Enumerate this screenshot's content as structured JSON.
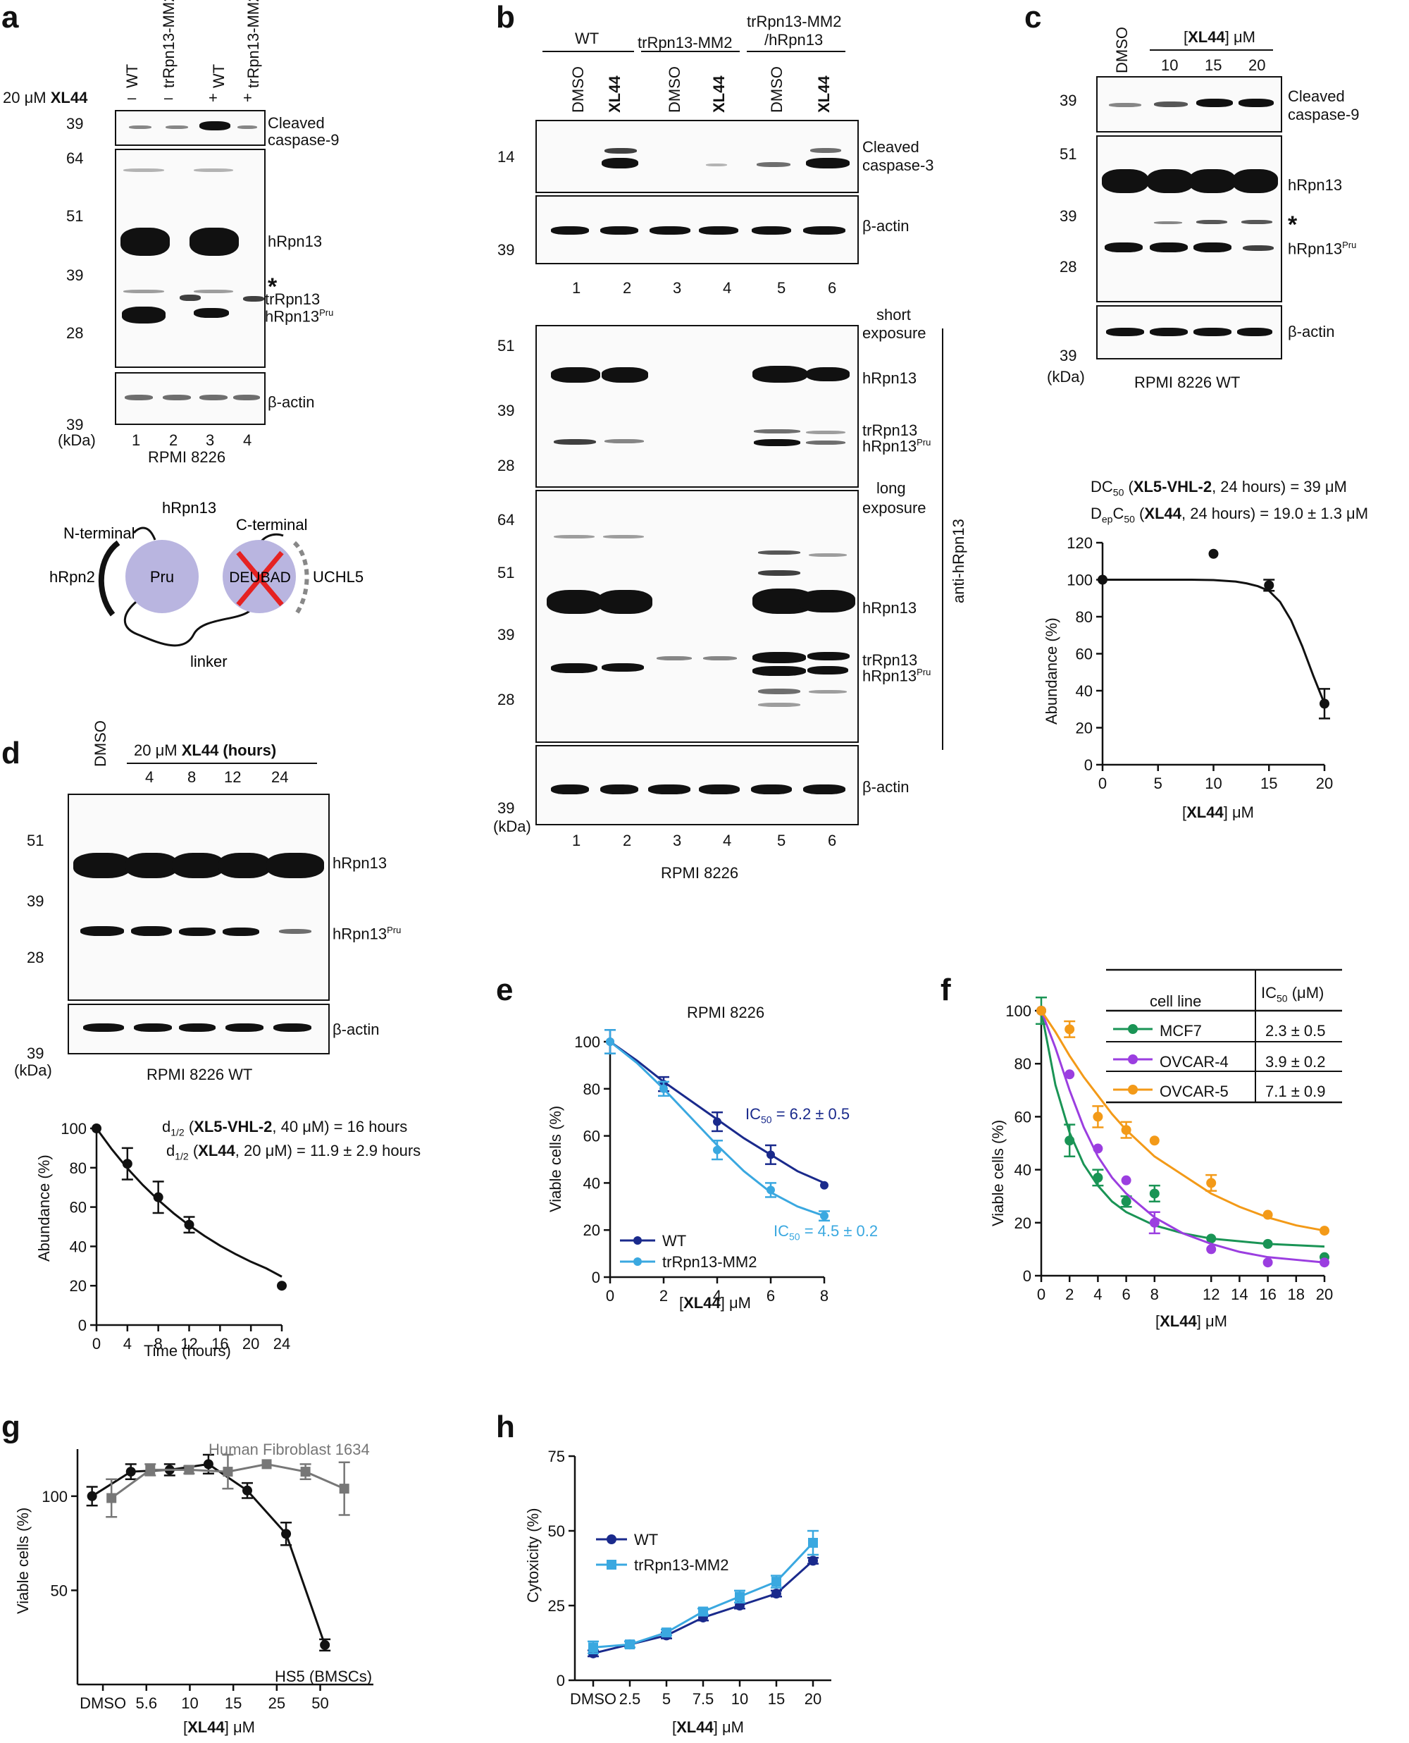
{
  "panels": {
    "a": {
      "label": "a",
      "treatment_prefix": "20 μM",
      "treatment_drug": "XL44",
      "lanes": [
        {
          "name": "WT",
          "sign": "–",
          "num": "1"
        },
        {
          "name": "trRpn13-MM2",
          "sign": "–",
          "num": "2"
        },
        {
          "name": "WT",
          "sign": "+",
          "num": "3"
        },
        {
          "name": "trRpn13-MM2",
          "sign": "+",
          "num": "4"
        }
      ],
      "markers": [
        "39",
        "64",
        "51",
        "39",
        "28",
        "39"
      ],
      "kda": "(kDa)",
      "blot_labels": [
        "Cleaved",
        "caspase-9",
        "hRpn13",
        "*",
        "trRpn13",
        "hRpn13",
        "Pru",
        "β-actin"
      ],
      "cell_line": "RPMI 8226"
    },
    "diagram": {
      "title": "hRpn13",
      "n_terminal": "N-terminal",
      "c_terminal": "C-terminal",
      "hrpn2": "hRpn2",
      "pru": "Pru",
      "deubad": "DEUBAD",
      "uchl5": "UCHL5",
      "linker": "linker",
      "pru_color": "#b9b5e0",
      "cross_color": "#e52222"
    },
    "b": {
      "label": "b",
      "groups": [
        "WT",
        "trRpn13-MM2",
        "trRpn13-MM2",
        "/hRpn13"
      ],
      "lanes": [
        "DMSO",
        "XL44",
        "DMSO",
        "XL44",
        "DMSO",
        "XL44"
      ],
      "lane_nums": [
        "1",
        "2",
        "3",
        "4",
        "5",
        "6"
      ],
      "markers": [
        "14",
        "39",
        "51",
        "39",
        "28",
        "64",
        "51",
        "39",
        "28",
        "39"
      ],
      "kda": "(kDa)",
      "blot_labels": [
        "Cleaved",
        "caspase-3",
        "β-actin",
        "short",
        "exposure",
        "hRpn13",
        "trRpn13",
        "hRpn13",
        "Pru",
        "long",
        "exposure",
        "hRpn13",
        "trRpn13",
        "hRpn13",
        "Pru",
        "β-actin"
      ],
      "antibody": "anti-hRpn13",
      "cell_line": "RPMI 8226"
    },
    "c": {
      "label": "c",
      "lane_dmso": "DMSO",
      "header_pre": "[",
      "header_drug": "XL44",
      "header_post": "] μM",
      "concs": [
        "10",
        "15",
        "20"
      ],
      "markers": [
        "39",
        "51",
        "39",
        "28",
        "39"
      ],
      "kda": "(kDa)",
      "blot_labels": [
        "Cleaved",
        "caspase-9",
        "hRpn13",
        "*",
        "hRpn13",
        "Pru",
        "β-actin"
      ],
      "cell_line": "RPMI 8226 WT"
    },
    "d": {
      "label": "d",
      "lane_dmso": "DMSO",
      "header_pre": "20 μM",
      "header_drug": "XL44 (hours)",
      "times": [
        "4",
        "8",
        "12",
        "24"
      ],
      "markers": [
        "51",
        "39",
        "28",
        "39"
      ],
      "kda": "(kDa)",
      "blot_labels": [
        "hRpn13",
        "hRpn13",
        "Pru",
        "β-actin"
      ],
      "cell_line": "RPMI 8226 WT"
    }
  },
  "chart_data": [
    {
      "id": "c-plot",
      "type": "line",
      "title_line1": [
        "DC",
        "50",
        " (",
        "XL5-VHL-2",
        ", 24 hours) = 39 μM"
      ],
      "title_line2": [
        "D",
        "ep",
        "C",
        "50",
        " (",
        "XL44",
        ", 24 hours) = 19.0 ± 1.3 μM"
      ],
      "xlabel": [
        "[",
        "XL44",
        "] μM"
      ],
      "ylabel": "Abundance (%)",
      "xlim": [
        0,
        20
      ],
      "ylim": [
        0,
        120
      ],
      "xticks": [
        0,
        5,
        10,
        15,
        20
      ],
      "yticks": [
        0,
        20,
        40,
        60,
        80,
        100,
        120
      ],
      "series": [
        {
          "name": "XL44",
          "color": "#111111",
          "x": [
            0,
            10,
            15,
            20
          ],
          "y": [
            100,
            114,
            97,
            33
          ],
          "err": [
            0,
            0,
            3,
            8
          ],
          "fit_x": [
            0,
            2,
            4,
            6,
            8,
            10,
            12,
            13,
            14,
            15,
            16,
            17,
            18,
            19,
            20
          ],
          "fit_y": [
            100,
            100,
            100,
            100,
            100,
            99.8,
            99,
            98,
            96.5,
            94,
            88,
            78,
            64,
            48,
            33
          ]
        }
      ]
    },
    {
      "id": "d-plot",
      "type": "line",
      "title_line1": [
        "d",
        "1/2",
        " (",
        "XL5-VHL-2",
        ", 40 μM) = 16 hours"
      ],
      "title_line2": [
        "d",
        "1/2",
        " (",
        "XL44",
        ", 20 μM) = 11.9 ± 2.9 hours"
      ],
      "xlabel": [
        "Time (hours)"
      ],
      "ylabel": "Abundance (%)",
      "xlim": [
        0,
        24
      ],
      "ylim": [
        0,
        100
      ],
      "xticks": [
        0,
        4,
        8,
        12,
        16,
        20,
        24
      ],
      "yticks": [
        0,
        20,
        40,
        60,
        80,
        100
      ],
      "series": [
        {
          "name": "XL44",
          "color": "#111111",
          "x": [
            0,
            4,
            8,
            12,
            24
          ],
          "y": [
            100,
            82,
            65,
            51,
            20
          ],
          "err": [
            0,
            8,
            8,
            4,
            0
          ],
          "fit_x": [
            0,
            2,
            4,
            6,
            8,
            10,
            12,
            14,
            16,
            18,
            20,
            22,
            24
          ],
          "fit_y": [
            100,
            89.3,
            79.7,
            71.2,
            63.6,
            56.8,
            50.7,
            45.3,
            40.4,
            36.1,
            32.2,
            28.8,
            24.6
          ]
        }
      ]
    },
    {
      "id": "e-plot",
      "type": "line",
      "title": "RPMI 8226",
      "xlabel": [
        "[",
        "XL44",
        "] μM"
      ],
      "ylabel": "Viable cells (%)",
      "xlim": [
        0,
        8
      ],
      "ylim": [
        0,
        100
      ],
      "xticks": [
        0,
        2,
        4,
        6,
        8
      ],
      "yticks": [
        0,
        20,
        40,
        60,
        80,
        100
      ],
      "annotations": [
        {
          "parts": [
            "IC",
            "50",
            " = 6.2 ± 0.5"
          ],
          "color": "#1a2a8c"
        },
        {
          "parts": [
            "IC",
            "50",
            " = 4.5 ± 0.2"
          ],
          "color": "#3aa8e0"
        }
      ],
      "series": [
        {
          "name": "WT",
          "color": "#1a2a8c",
          "x": [
            0,
            2,
            4,
            6,
            8
          ],
          "y": [
            100,
            82,
            66,
            52,
            39
          ],
          "err": [
            5,
            3,
            4,
            4,
            0
          ],
          "fit_x": [
            0,
            1,
            2,
            3,
            4,
            5,
            6,
            7,
            8
          ],
          "fit_y": [
            100,
            92,
            83,
            75,
            67,
            59,
            52,
            45,
            40
          ]
        },
        {
          "name": "trRpn13-MM2",
          "color": "#3aa8e0",
          "x": [
            0,
            2,
            4,
            6,
            8
          ],
          "y": [
            100,
            80,
            54,
            37,
            26
          ],
          "err": [
            5,
            3,
            4,
            3,
            2
          ],
          "fit_x": [
            0,
            1,
            2,
            3,
            4,
            5,
            6,
            7,
            8
          ],
          "fit_y": [
            100,
            91,
            80,
            68,
            56,
            45,
            36,
            30,
            26
          ]
        }
      ]
    },
    {
      "id": "f-plot",
      "type": "line",
      "xlabel": [
        "[",
        "XL44",
        "] μM"
      ],
      "ylabel": "Viable cells (%)",
      "xlim": [
        0,
        20
      ],
      "ylim": [
        0,
        100
      ],
      "xticks": [
        0,
        2,
        4,
        6,
        8,
        12,
        14,
        16,
        18,
        20
      ],
      "xtick_labels": [
        "0",
        "2",
        "4",
        "6",
        "8",
        "12",
        "14",
        "16",
        "18",
        "20"
      ],
      "yticks": [
        0,
        20,
        40,
        60,
        80,
        100
      ],
      "legend_table": {
        "header_left": "cell line",
        "header_right": [
          "IC",
          "50",
          " (μM)"
        ],
        "rows": [
          {
            "name": "MCF7",
            "ic50": "2.3 ± 0.5"
          },
          {
            "name": "OVCAR-4",
            "ic50": "3.9 ± 0.2"
          },
          {
            "name": "OVCAR-5",
            "ic50": "7.1 ± 0.9"
          }
        ]
      },
      "series": [
        {
          "name": "MCF7",
          "color": "#1a9455",
          "x": [
            0,
            2,
            4,
            6,
            8,
            12,
            16,
            20
          ],
          "y": [
            100,
            51,
            37,
            28,
            31,
            14,
            12,
            7
          ],
          "err": [
            5,
            6,
            3,
            2,
            3,
            0,
            0,
            0
          ],
          "fit_x": [
            0,
            1,
            2,
            3,
            4,
            5,
            6,
            8,
            10,
            12,
            14,
            16,
            18,
            20
          ],
          "fit_y": [
            100,
            72,
            54,
            42,
            34,
            28,
            24,
            19,
            16,
            14,
            13,
            12,
            11.5,
            11
          ]
        },
        {
          "name": "OVCAR-4",
          "color": "#9b3ee0",
          "x": [
            0,
            2,
            4,
            6,
            8,
            12,
            16,
            20
          ],
          "y": [
            100,
            76,
            48,
            36,
            20,
            10,
            5,
            5
          ],
          "err": [
            0,
            0,
            0,
            0,
            4,
            0,
            0,
            0
          ],
          "fit_x": [
            0,
            1,
            2,
            3,
            4,
            5,
            6,
            8,
            10,
            12,
            14,
            16,
            18,
            20
          ],
          "fit_y": [
            100,
            86,
            70,
            56,
            45,
            37,
            31,
            22,
            16,
            12,
            9,
            7,
            6,
            5
          ]
        },
        {
          "name": "OVCAR-5",
          "color": "#f39a18",
          "x": [
            0,
            2,
            4,
            6,
            8,
            12,
            16,
            20
          ],
          "y": [
            100,
            93,
            60,
            55,
            51,
            35,
            23,
            17
          ],
          "err": [
            0,
            3,
            4,
            3,
            0,
            3,
            0,
            0
          ],
          "fit_x": [
            0,
            1,
            2,
            3,
            4,
            5,
            6,
            8,
            10,
            12,
            14,
            16,
            18,
            20
          ],
          "fit_y": [
            100,
            92,
            83,
            75,
            68,
            61,
            55,
            45,
            38,
            31,
            26,
            22,
            19,
            17
          ]
        }
      ]
    },
    {
      "id": "g-plot",
      "type": "line",
      "xlabel": [
        "[",
        "XL44",
        "] μM"
      ],
      "ylabel": "Viable cells (%)",
      "categories": [
        "DMSO",
        "5.6",
        "10",
        "15",
        "25",
        "50"
      ],
      "ylim": [
        0,
        125
      ],
      "yticks": [
        50,
        100
      ],
      "annotations": [
        {
          "parts": [
            "Human Fibroblast 1634"
          ],
          "color": "#777777"
        },
        {
          "parts": [
            "HS5 (BMSCs)"
          ],
          "color": "#111111"
        }
      ],
      "series": [
        {
          "name": "HS5 (BMSCs)",
          "color": "#111111",
          "x": [
            0,
            0.8,
            1.6,
            2.4,
            3.2,
            4.0,
            4.8,
            5.6
          ],
          "y": [
            100,
            113,
            114,
            117,
            103,
            80,
            21,
            null
          ],
          "err": [
            5,
            4,
            3,
            5,
            4,
            6,
            3,
            0
          ]
        },
        {
          "name": "Human Fibroblast 1634",
          "color": "#777777",
          "x": [
            0.4,
            1.2,
            2.0,
            2.8,
            3.6,
            4.4,
            5.2
          ],
          "y": [
            99,
            114,
            114,
            113,
            117,
            113,
            104
          ],
          "err": [
            10,
            3,
            2,
            9,
            0,
            4,
            14
          ]
        }
      ]
    },
    {
      "id": "h-plot",
      "type": "line",
      "xlabel": [
        "[",
        "XL44",
        "] μM"
      ],
      "ylabel": "Cytoxicity (%)",
      "categories": [
        "DMSO",
        "2.5",
        "5",
        "7.5",
        "10",
        "15",
        "20"
      ],
      "ylim": [
        0,
        75
      ],
      "yticks": [
        0,
        25,
        50,
        75
      ],
      "series": [
        {
          "name": "WT",
          "color": "#1a2a8c",
          "y": [
            9,
            12,
            15,
            21,
            25,
            29,
            40
          ],
          "err": [
            1,
            1,
            1,
            1,
            1,
            1,
            1
          ]
        },
        {
          "name": "trRpn13-MM2",
          "color": "#3aa8e0",
          "y": [
            11,
            12,
            16,
            23,
            28,
            33,
            46
          ],
          "err": [
            2,
            1,
            1,
            1,
            2,
            2,
            4
          ]
        }
      ]
    }
  ]
}
